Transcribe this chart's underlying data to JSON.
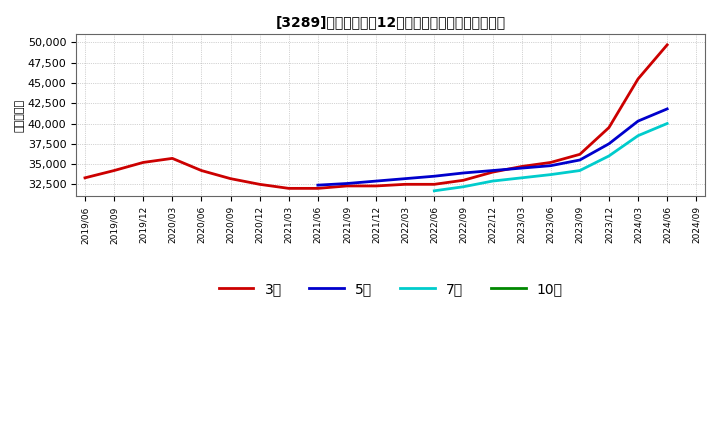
{
  "title": "[3289]　当期純利益12か月移動合計の平均値の推移",
  "ylabel": "（百万円）",
  "ylim": [
    31000,
    51000
  ],
  "yticks": [
    32500,
    35000,
    37500,
    40000,
    42500,
    45000,
    47500,
    50000
  ],
  "ytick_labels": [
    "32,500",
    "35,000",
    "37,500",
    "40,000",
    "42,500",
    "45,000",
    "47,500",
    "50,000"
  ],
  "background_color": "#ffffff",
  "grid_color": "#aaaaaa",
  "series": {
    "3年": {
      "color": "#cc0000",
      "x": [
        "2019/06",
        "2019/09",
        "2019/12",
        "2020/03",
        "2020/06",
        "2020/09",
        "2020/12",
        "2021/03",
        "2021/06",
        "2021/09",
        "2021/12",
        "2022/03",
        "2022/06",
        "2022/09",
        "2022/12",
        "2023/03",
        "2023/06",
        "2023/09",
        "2023/12",
        "2024/03",
        "2024/06"
      ],
      "y": [
        33300,
        34200,
        35200,
        35700,
        34200,
        33200,
        32500,
        32000,
        32000,
        32300,
        32300,
        32500,
        32500,
        33000,
        34000,
        34700,
        35200,
        36200,
        39500,
        45500,
        49700
      ]
    },
    "5年": {
      "color": "#0000cc",
      "x": [
        "2019/06",
        "2019/09",
        "2019/12",
        "2020/03",
        "2020/06",
        "2020/09",
        "2020/12",
        "2021/03",
        "2021/06",
        "2021/09",
        "2021/12",
        "2022/03",
        "2022/06",
        "2022/09",
        "2022/12",
        "2023/03",
        "2023/06",
        "2023/09",
        "2023/12",
        "2024/03",
        "2024/06"
      ],
      "y": [
        null,
        null,
        null,
        null,
        null,
        null,
        null,
        null,
        32400,
        32600,
        32900,
        33200,
        33500,
        33900,
        34200,
        34500,
        34800,
        35500,
        37500,
        40300,
        41800
      ]
    },
    "7年": {
      "color": "#00cccc",
      "x": [
        "2019/06",
        "2019/09",
        "2019/12",
        "2020/03",
        "2020/06",
        "2020/09",
        "2020/12",
        "2021/03",
        "2021/06",
        "2021/09",
        "2021/12",
        "2022/03",
        "2022/06",
        "2022/09",
        "2022/12",
        "2023/03",
        "2023/06",
        "2023/09",
        "2023/12",
        "2024/03",
        "2024/06"
      ],
      "y": [
        null,
        null,
        null,
        null,
        null,
        null,
        null,
        null,
        null,
        null,
        null,
        null,
        31700,
        32200,
        32900,
        33300,
        33700,
        34200,
        36000,
        38500,
        40000
      ]
    },
    "10年": {
      "color": "#008800",
      "x": [
        "2019/06",
        "2019/09",
        "2019/12",
        "2020/03",
        "2020/06",
        "2020/09",
        "2020/12",
        "2021/03",
        "2021/06",
        "2021/09",
        "2021/12",
        "2022/03",
        "2022/06",
        "2022/09",
        "2022/12",
        "2023/03",
        "2023/06",
        "2023/09",
        "2023/12",
        "2024/03",
        "2024/06"
      ],
      "y": [
        null,
        null,
        null,
        null,
        null,
        null,
        null,
        null,
        null,
        null,
        null,
        null,
        null,
        null,
        null,
        null,
        null,
        null,
        null,
        null,
        null
      ]
    }
  },
  "xtick_labels": [
    "2019/06",
    "2019/09",
    "2019/12",
    "2020/03",
    "2020/06",
    "2020/09",
    "2020/12",
    "2021/03",
    "2021/06",
    "2021/09",
    "2021/12",
    "2022/03",
    "2022/06",
    "2022/09",
    "2022/12",
    "2023/03",
    "2023/06",
    "2023/09",
    "2023/12",
    "2024/03",
    "2024/06",
    "2024/09"
  ],
  "legend_labels": [
    "3年",
    "5年",
    "7年",
    "10年"
  ],
  "legend_colors": [
    "#cc0000",
    "#0000cc",
    "#00cccc",
    "#008800"
  ]
}
